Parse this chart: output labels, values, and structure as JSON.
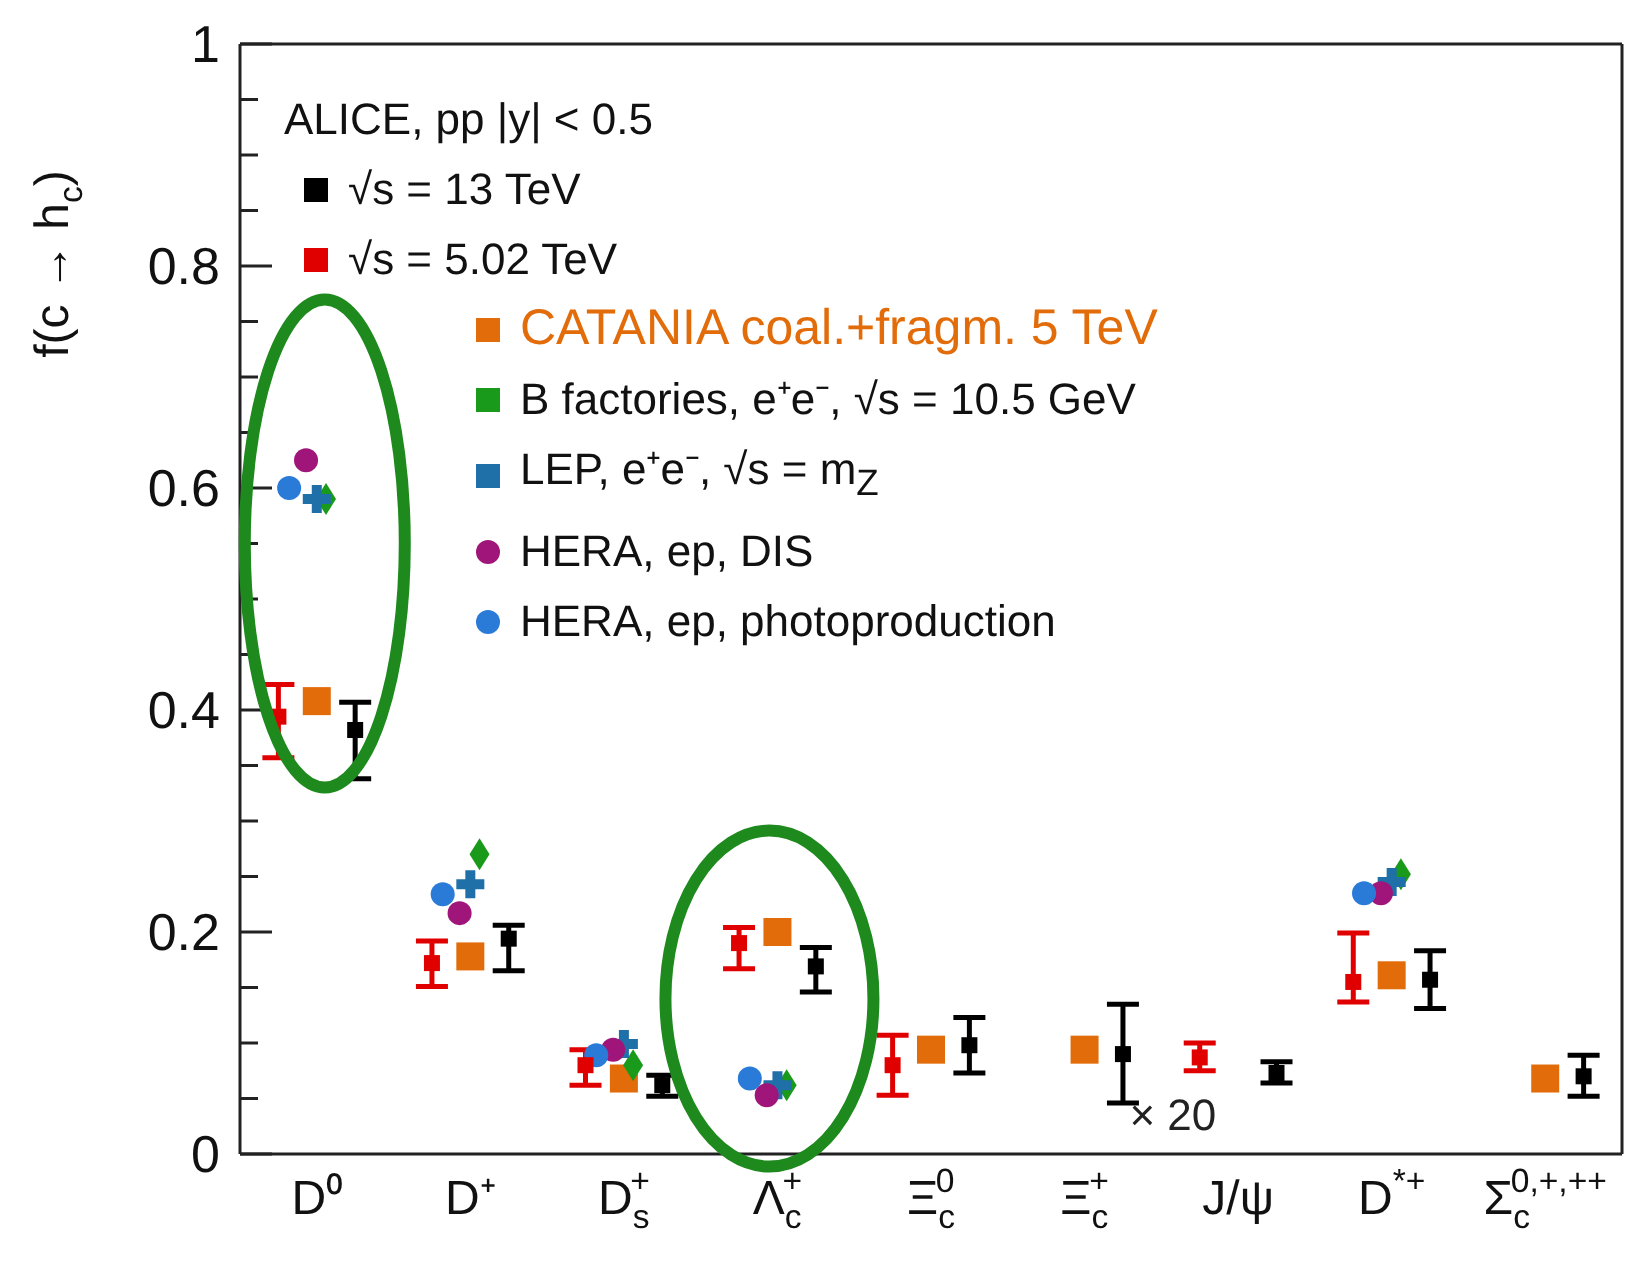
{
  "chart_data": {
    "type": "scatter",
    "ylabel": "f(c → h$_{c}$)",
    "legend_title": "ALICE, pp |y| < 0.5",
    "legend": "top left",
    "categories": [
      "D⁰",
      "D⁺",
      "D$_{s}$$^{+}$",
      "Λ$_{c}$$^{+}$",
      "Ξ$_{c}$$^{0}$",
      "Ξ$_{c}$$^{+}$",
      "J/ψ",
      "D$^{*+}$",
      "Σ$_{c}$$^{0,+,++}$"
    ],
    "ylim": [
      0,
      1
    ],
    "yticks": [
      0,
      {
        "value": 0.05,
        "label": null
      },
      {
        "value": 0.1,
        "label": null
      },
      {
        "value": 0.15,
        "label": null
      },
      0.2,
      {
        "value": 0.25,
        "label": null
      },
      {
        "value": 0.3,
        "label": null
      },
      {
        "value": 0.35,
        "label": null
      },
      0.4,
      {
        "value": 0.45,
        "label": null
      },
      {
        "value": 0.5,
        "label": null
      },
      {
        "value": 0.55,
        "label": null
      },
      0.6,
      {
        "value": 0.65,
        "label": null
      },
      {
        "value": 0.7,
        "label": null
      },
      {
        "value": 0.75,
        "label": null
      },
      0.8,
      {
        "value": 0.85,
        "label": null
      },
      {
        "value": 0.9,
        "label": null
      },
      {
        "value": 0.95,
        "label": null
      },
      1
    ],
    "grid": false,
    "series": [
      {
        "name": "√s = 13 TeV",
        "color": "#000000",
        "marker": "square",
        "values": [
          0.382,
          0.194,
          0.062,
          0.169,
          0.098,
          0.09,
          0.073,
          0.157,
          0.07
        ],
        "errors": [
          [
            0.338,
            0.407
          ],
          [
            0.165,
            0.206
          ],
          [
            0.052,
            0.071
          ],
          [
            0.146,
            0.186
          ],
          [
            0.073,
            0.123
          ],
          [
            0.046,
            0.135
          ],
          [
            0.064,
            0.083
          ],
          [
            0.131,
            0.183
          ],
          [
            0.052,
            0.089
          ]
        ]
      },
      {
        "name": "√s = 5.02 TeV",
        "color": "#e00000",
        "marker": "square",
        "values": [
          0.394,
          0.172,
          0.08,
          0.19,
          0.08,
          null,
          0.087,
          0.155,
          null
        ],
        "errors": [
          [
            0.357,
            0.423
          ],
          [
            0.151,
            0.192
          ],
          [
            0.062,
            0.094
          ],
          [
            0.167,
            0.204
          ],
          [
            0.053,
            0.107
          ],
          null,
          [
            0.075,
            0.1
          ],
          [
            0.137,
            0.199
          ],
          null
        ]
      },
      {
        "name": "CATANIA coal.+fragm. 5 TeV",
        "type": "scatter",
        "marker": "square",
        "color": "#e36c0a",
        "values": [
          0.408,
          0.178,
          0.068,
          0.2,
          0.094,
          0.094,
          null,
          0.161,
          0.068
        ]
      },
      {
        "name": "B factories, e⁺e⁻, √s = 10.5 GeV",
        "color": "#1a9a1a",
        "marker": "diamond",
        "values": [
          0.59,
          0.27,
          0.08,
          0.062,
          null,
          null,
          null,
          0.252,
          null
        ]
      },
      {
        "name": "LEP, e⁺e⁻, √s = m$_{Z}$",
        "color": "#1f6fa8",
        "marker": "cross",
        "values": [
          0.59,
          0.243,
          0.099,
          0.062,
          null,
          null,
          null,
          0.245,
          null
        ]
      },
      {
        "name": "HERA, ep, DIS",
        "color": "#a0157a",
        "marker": "circle",
        "values": [
          0.625,
          0.217,
          0.094,
          0.053,
          null,
          null,
          null,
          0.235,
          null
        ]
      },
      {
        "name": "HERA, ep, photoproduction",
        "color": "#2a7ad8",
        "marker": "circle",
        "values": [
          0.6,
          0.234,
          0.089,
          0.068,
          null,
          null,
          null,
          0.235,
          null
        ]
      }
    ],
    "annotations": [
      "× 20"
    ]
  }
}
